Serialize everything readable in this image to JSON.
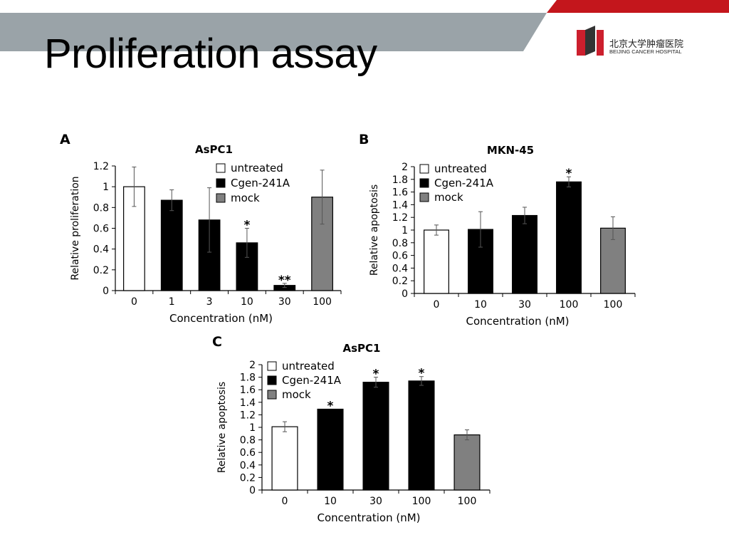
{
  "slide": {
    "title": "Proliferation assay",
    "logo": {
      "name_cn": "北京大学肿瘤医院",
      "name_en": "BEIJING CANCER HOSPITAL",
      "colors": {
        "red": "#cc1f2d",
        "dark": "#333333"
      }
    },
    "banner_colors": {
      "gray": "#9aa3a8",
      "red": "#c4161c"
    }
  },
  "chart_data": [
    {
      "panel": "A",
      "type": "bar",
      "title": "AsPC1",
      "xlabel": "Concentration (nM)",
      "ylabel": "Relative proliferation",
      "ylim": [
        0,
        1.2
      ],
      "yticks": [
        "0",
        "0.2",
        "0.4",
        "0.6",
        "0.8",
        "1",
        "1.2"
      ],
      "categories": [
        "0",
        "1",
        "3",
        "10",
        "30",
        "100"
      ],
      "values": [
        1.0,
        0.87,
        0.68,
        0.46,
        0.05,
        0.9
      ],
      "errors": [
        0.19,
        0.1,
        0.31,
        0.14,
        0.02,
        0.26
      ],
      "groups": [
        "untreated",
        "Cgen-241A",
        "Cgen-241A",
        "Cgen-241A",
        "Cgen-241A",
        "mock"
      ],
      "significance": [
        "",
        "",
        "",
        "*",
        "**",
        ""
      ],
      "legend": [
        {
          "label": "untreated",
          "color": "#ffffff"
        },
        {
          "label": "Cgen-241A",
          "color": "#000000"
        },
        {
          "label": "mock",
          "color": "#808080"
        }
      ]
    },
    {
      "panel": "B",
      "type": "bar",
      "title": "MKN-45",
      "xlabel": "Concentration (nM)",
      "ylabel": "Relative apoptosis",
      "ylim": [
        0,
        2
      ],
      "yticks": [
        "0",
        "0.2",
        "0.4",
        "0.6",
        "0.8",
        "1",
        "1.2",
        "1.4",
        "1.6",
        "1.8",
        "2"
      ],
      "categories": [
        "0",
        "10",
        "30",
        "100",
        "100"
      ],
      "values": [
        1.0,
        1.01,
        1.23,
        1.76,
        1.03
      ],
      "errors": [
        0.08,
        0.28,
        0.13,
        0.08,
        0.18
      ],
      "groups": [
        "untreated",
        "Cgen-241A",
        "Cgen-241A",
        "Cgen-241A",
        "mock"
      ],
      "significance": [
        "",
        "",
        "",
        "*",
        ""
      ],
      "legend": [
        {
          "label": "untreated",
          "color": "#ffffff"
        },
        {
          "label": "Cgen-241A",
          "color": "#000000"
        },
        {
          "label": "mock",
          "color": "#808080"
        }
      ]
    },
    {
      "panel": "C",
      "type": "bar",
      "title": "AsPC1",
      "xlabel": "Concentration (nM)",
      "ylabel": "Relative apoptosis",
      "ylim": [
        0,
        2
      ],
      "yticks": [
        "0",
        "0.2",
        "0.4",
        "0.6",
        "0.8",
        "1",
        "1.2",
        "1.4",
        "1.6",
        "1.8",
        "2"
      ],
      "categories": [
        "0",
        "10",
        "30",
        "100",
        "100"
      ],
      "values": [
        1.01,
        1.29,
        1.72,
        1.74,
        0.88
      ],
      "errors": [
        0.08,
        0.0,
        0.08,
        0.07,
        0.08
      ],
      "groups": [
        "untreated",
        "Cgen-241A",
        "Cgen-241A",
        "Cgen-241A",
        "mock"
      ],
      "significance": [
        "",
        "*",
        "*",
        "*",
        ""
      ],
      "legend": [
        {
          "label": "untreated",
          "color": "#ffffff"
        },
        {
          "label": "Cgen-241A",
          "color": "#000000"
        },
        {
          "label": "mock",
          "color": "#808080"
        }
      ]
    }
  ]
}
